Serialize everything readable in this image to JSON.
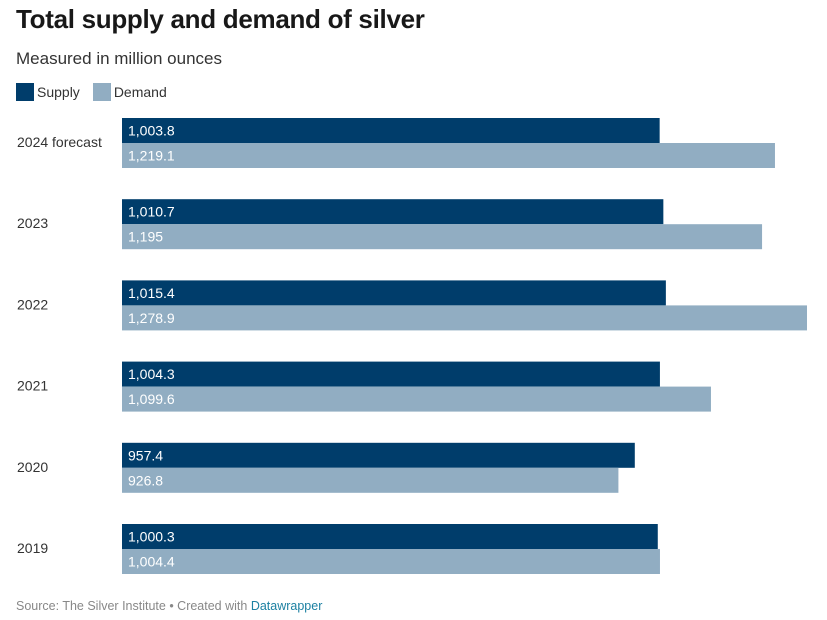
{
  "title": "Total supply and demand of silver",
  "subtitle": "Measured in million ounces",
  "colors": {
    "supply": "#003d6b",
    "demand": "#91adc2",
    "label_text": "#ffffff"
  },
  "legend": {
    "supply_label": "Supply",
    "demand_label": "Demand"
  },
  "footer": {
    "source": "Source: The Silver Institute • Created with ",
    "credit": "Datawrapper"
  },
  "chart_data": {
    "type": "bar",
    "orientation": "horizontal",
    "title": "Total supply and demand of silver",
    "subtitle": "Measured in million ounces",
    "xlabel": "",
    "ylabel": "",
    "xlim": [
      0,
      1278.9
    ],
    "grid": false,
    "legend_position": "top-left",
    "categories": [
      "2024 forecast",
      "2023",
      "2022",
      "2021",
      "2020",
      "2019"
    ],
    "series": [
      {
        "name": "Supply",
        "values": [
          1003.8,
          1010.7,
          1015.4,
          1004.3,
          957.4,
          1000.3
        ],
        "labels": [
          "1,003.8",
          "1,010.7",
          "1,015.4",
          "1,004.3",
          "957.4",
          "1,000.3"
        ]
      },
      {
        "name": "Demand",
        "values": [
          1219.1,
          1195,
          1278.9,
          1099.6,
          926.8,
          1004.4
        ],
        "labels": [
          "1,219.1",
          "1,195",
          "1,278.9",
          "1,099.6",
          "926.8",
          "1,004.4"
        ]
      }
    ]
  }
}
